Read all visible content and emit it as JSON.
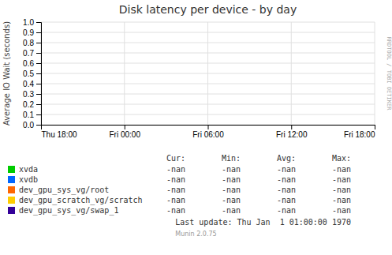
{
  "chart_data": {
    "type": "line",
    "title": "Disk latency per device - by day",
    "y_label": "Average IO Wait (seconds)",
    "categories": [
      "Thu 18:00",
      "Fri 00:00",
      "Fri 06:00",
      "Fri 12:00",
      "Fri 18:00"
    ],
    "series": [
      {
        "name": "xvda",
        "color": "#00cc00",
        "values": [
          null,
          null,
          null,
          null,
          null
        ],
        "stats": [
          "-nan",
          "-nan",
          "-nan",
          "-nan"
        ]
      },
      {
        "name": "xvdb",
        "color": "#0066ff",
        "values": [
          null,
          null,
          null,
          null,
          null
        ],
        "stats": [
          "-nan",
          "-nan",
          "-nan",
          "-nan"
        ]
      },
      {
        "name": "dev_gpu_sys_vg/root",
        "color": "#ff6600",
        "values": [
          null,
          null,
          null,
          null,
          null
        ],
        "stats": [
          "-nan",
          "-nan",
          "-nan",
          "-nan"
        ]
      },
      {
        "name": "dev_gpu_scratch_vg/scratch",
        "color": "#ffcc00",
        "values": [
          null,
          null,
          null,
          null,
          null
        ],
        "stats": [
          "-nan",
          "-nan",
          "-nan",
          "-nan"
        ]
      },
      {
        "name": "dev_gpu_sys_vg/swap_1",
        "color": "#330099",
        "values": [
          null,
          null,
          null,
          null,
          null
        ],
        "stats": [
          "-nan",
          "-nan",
          "-nan",
          "-nan"
        ]
      }
    ],
    "stats_header": [
      "Cur:",
      "Min:",
      "Avg:",
      "Max:"
    ],
    "ylim": [
      0.0,
      1.0
    ],
    "yticks": [
      {
        "value": 0.0,
        "label": "0.0"
      },
      0.1,
      0.2,
      0.3,
      0.4,
      0.5,
      0.6,
      0.7,
      0.8,
      0.9,
      {
        "value": 1.0,
        "label": "1.0"
      }
    ],
    "grid": true,
    "legend": "bottom",
    "annotations": [
      "Last update: Thu Jan  1 01:00:00 1970",
      "Munin 2.0.75",
      "RRDTOOL / TOBI OETIKER"
    ]
  }
}
